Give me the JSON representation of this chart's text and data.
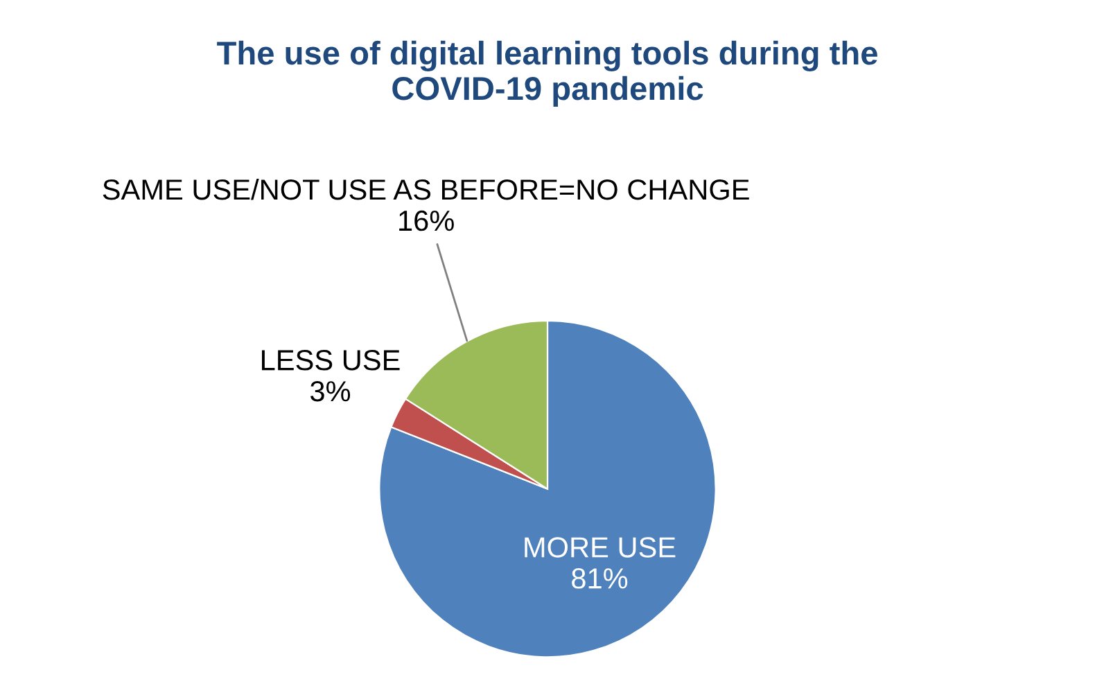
{
  "chart_data": {
    "type": "pie",
    "title": "The use of digital learning tools during the\nCOVID-19 pandemic",
    "categories": [
      "MORE USE",
      "LESS USE",
      "SAME USE/NOT USE AS BEFORE=NO CHANGE"
    ],
    "values": [
      81,
      3,
      16
    ],
    "colors": [
      "#4f81bd",
      "#c0504d",
      "#9bbb59"
    ],
    "value_labels": [
      "81%",
      "3%",
      "16%"
    ],
    "legend": false
  }
}
